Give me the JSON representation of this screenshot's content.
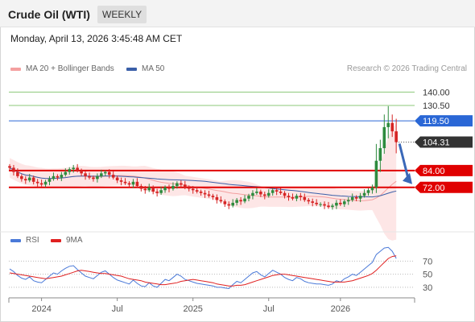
{
  "header": {
    "instrument": "Crude Oil (WTI)",
    "period": "WEEKLY"
  },
  "timestamp": "Monday, April 13, 2026 3:45:48 AM CET",
  "legend": {
    "ma20": "MA 20 + Bollinger Bands",
    "ma50": "MA 50",
    "credit": "Research © 2026 Trading Central",
    "rsi": "RSI",
    "rsi_ma": "9MA"
  },
  "colors": {
    "ma20": "#f4a0a0",
    "ma50": "#3a5fa8",
    "bull": "#2e8b3e",
    "bear": "#d62424",
    "resistance_green": "#8cc878",
    "pivot_blue": "#2a67d6",
    "support_red": "#e00000",
    "rsi": "#4a79d8",
    "rsi_ma": "#e02020"
  },
  "chart_data": [
    {
      "type": "candlestick",
      "ylim": [
        42,
        150
      ],
      "levels": [
        {
          "value": 140.0,
          "label": "140.00",
          "style": "resistance"
        },
        {
          "value": 130.5,
          "label": "130.50",
          "style": "resistance"
        },
        {
          "value": 119.5,
          "label": "119.50",
          "style": "pivot"
        },
        {
          "value": 104.31,
          "label": "104.31",
          "style": "last"
        },
        {
          "value": 84.0,
          "label": "84.00",
          "style": "support"
        },
        {
          "value": 72.0,
          "label": "72.00",
          "style": "support"
        }
      ],
      "x_ticks": [
        "2024",
        "Jul",
        "2025",
        "Jul",
        "2026"
      ],
      "close": [
        86,
        83,
        80,
        78,
        77,
        79,
        76,
        75,
        74,
        76,
        78,
        80,
        79,
        81,
        83,
        85,
        86,
        84,
        82,
        80,
        79,
        78,
        80,
        82,
        83,
        81,
        79,
        77,
        76,
        75,
        74,
        76,
        73,
        71,
        70,
        72,
        69,
        68,
        70,
        72,
        71,
        73,
        75,
        74,
        72,
        71,
        70,
        69,
        68,
        67,
        66,
        65,
        63,
        62,
        60,
        59,
        61,
        63,
        62,
        64,
        66,
        68,
        69,
        67,
        66,
        68,
        70,
        69,
        68,
        66,
        65,
        64,
        66,
        65,
        63,
        62,
        61,
        60,
        60,
        59,
        58,
        59,
        61,
        60,
        62,
        63,
        65,
        64,
        66,
        68,
        70,
        72,
        91,
        100,
        115,
        118,
        112,
        104.31
      ]
    },
    {
      "type": "line",
      "ylim": [
        20,
        95
      ],
      "y_ticks": [
        70,
        50,
        30
      ],
      "series": [
        {
          "name": "RSI",
          "values": [
            58,
            54,
            48,
            44,
            42,
            46,
            40,
            38,
            37,
            42,
            47,
            52,
            50,
            55,
            59,
            62,
            63,
            57,
            52,
            47,
            45,
            43,
            48,
            53,
            55,
            50,
            45,
            41,
            39,
            37,
            35,
            41,
            36,
            32,
            31,
            37,
            32,
            30,
            36,
            42,
            40,
            45,
            50,
            47,
            42,
            40,
            38,
            36,
            35,
            34,
            33,
            32,
            30,
            30,
            29,
            28,
            34,
            39,
            37,
            42,
            47,
            52,
            54,
            49,
            46,
            51,
            56,
            53,
            50,
            45,
            42,
            40,
            45,
            43,
            39,
            37,
            36,
            35,
            35,
            34,
            33,
            35,
            40,
            38,
            43,
            46,
            50,
            48,
            53,
            58,
            63,
            68,
            80,
            85,
            90,
            91,
            85,
            74
          ]
        },
        {
          "name": "9MA",
          "values": [
            52,
            51,
            50,
            49,
            48,
            47,
            46,
            45,
            44,
            43,
            44,
            45,
            46,
            47,
            49,
            51,
            53,
            55,
            56,
            55,
            54,
            53,
            52,
            51,
            51,
            50,
            49,
            48,
            47,
            45,
            43,
            42,
            41,
            40,
            38,
            37,
            36,
            35,
            34,
            34,
            35,
            36,
            37,
            39,
            40,
            41,
            42,
            41,
            40,
            39,
            38,
            37,
            35,
            34,
            33,
            32,
            32,
            33,
            33,
            34,
            36,
            38,
            40,
            42,
            44,
            46,
            48,
            49,
            50,
            50,
            49,
            48,
            47,
            46,
            45,
            44,
            43,
            42,
            41,
            40,
            39,
            38,
            38,
            38,
            38,
            39,
            40,
            42,
            44,
            46,
            48,
            51,
            56,
            62,
            68,
            74,
            77,
            78
          ]
        }
      ]
    }
  ]
}
